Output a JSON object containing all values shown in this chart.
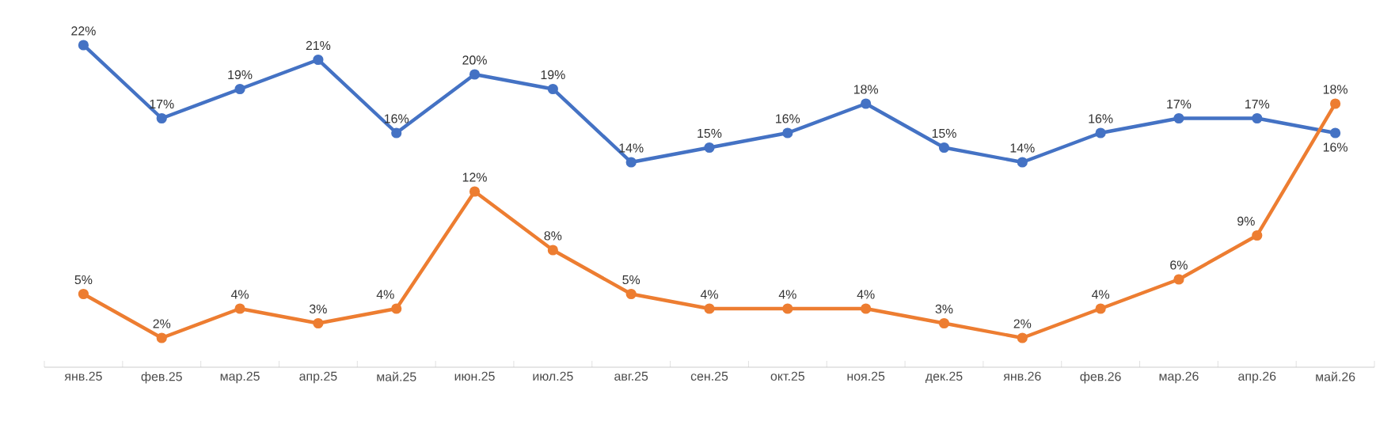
{
  "chart_data": {
    "type": "line",
    "categories": [
      "янв.25",
      "фев.25",
      "мар.25",
      "апр.25",
      "май.25",
      "июн.25",
      "июл.25",
      "авг.25",
      "сен.25",
      "окт.25",
      "ноя.25",
      "дек.25",
      "янв.26",
      "фев.26",
      "мар.26",
      "апр.26",
      "май.26"
    ],
    "series": [
      {
        "color": "#4472c4",
        "values": [
          22,
          17,
          19,
          21,
          16,
          20,
          19,
          14,
          15,
          16,
          18,
          15,
          14,
          16,
          17,
          17,
          16
        ],
        "value_labels": [
          "22%",
          "17%",
          "19%",
          "21%",
          "16%",
          "20%",
          "19%",
          "14%",
          "15%",
          "16%",
          "18%",
          "15%",
          "14%",
          "16%",
          "17%",
          "17%",
          "16%"
        ]
      },
      {
        "color": "#ed7d31",
        "values": [
          5,
          2,
          4,
          3,
          4,
          12,
          8,
          5,
          4,
          4,
          4,
          3,
          2,
          4,
          6,
          9,
          18
        ],
        "value_labels": [
          "5%",
          "2%",
          "4%",
          "3%",
          "4%",
          "12%",
          "8%",
          "5%",
          "4%",
          "4%",
          "4%",
          "3%",
          "2%",
          "4%",
          "6%",
          "9%",
          "18%"
        ]
      }
    ],
    "marker": "circle",
    "line_style": "solid"
  }
}
